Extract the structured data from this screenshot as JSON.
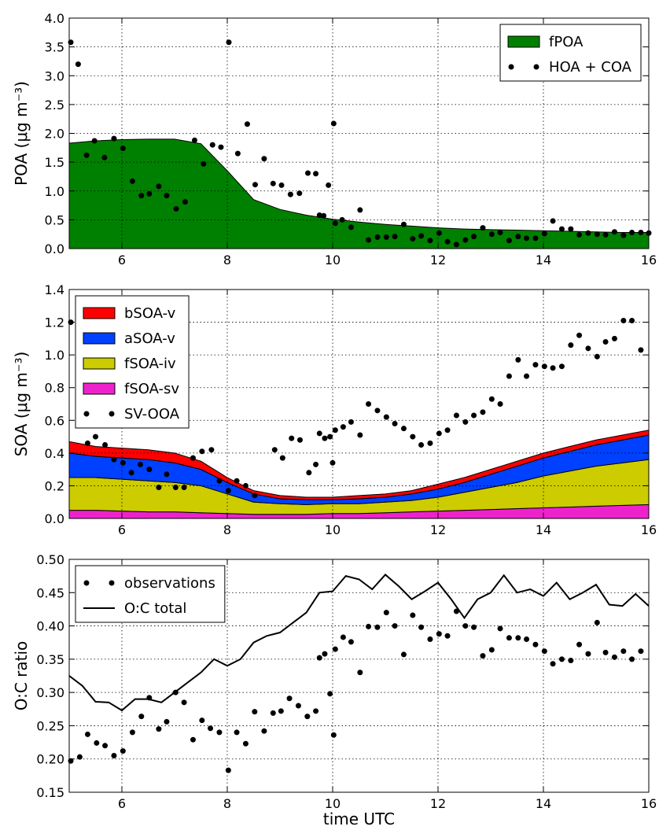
{
  "chart_data": [
    {
      "type": "combo",
      "ylabel": "POA (μg m⁻³)",
      "xlim": [
        5,
        16
      ],
      "ylim": [
        0,
        4
      ],
      "xticks": [
        6,
        8,
        10,
        12,
        14,
        16
      ],
      "yticks": [
        {
          "value": 0,
          "label": "0.0"
        },
        0.5,
        {
          "value": 1,
          "label": "1.0"
        },
        1.5,
        {
          "value": 2,
          "label": "2.0"
        },
        2.5,
        {
          "value": 3,
          "label": "3.0"
        },
        3.5,
        {
          "value": 4,
          "label": "4.0"
        }
      ],
      "grid": true,
      "legend": "upper right",
      "series": [
        {
          "name": "fPOA",
          "type": "area",
          "color": "#008000",
          "x": [
            5,
            5.5,
            6,
            6.5,
            7,
            7.5,
            8,
            8.5,
            9,
            9.5,
            10,
            10.5,
            11,
            11.5,
            12,
            12.5,
            13,
            13.5,
            14,
            14.5,
            15,
            15.5,
            16
          ],
          "values": [
            1.83,
            1.87,
            1.89,
            1.9,
            1.9,
            1.82,
            1.35,
            0.85,
            0.68,
            0.58,
            0.51,
            0.46,
            0.42,
            0.39,
            0.36,
            0.34,
            0.33,
            0.32,
            0.31,
            0.3,
            0.29,
            0.28,
            0.28
          ]
        },
        {
          "name": "HOA + COA",
          "type": "scatter",
          "color": "#000000",
          "x": [
            5.03,
            5.17,
            5.33,
            5.48,
            5.67,
            5.85,
            6.02,
            6.2,
            6.37,
            6.52,
            6.7,
            6.85,
            7.03,
            7.2,
            7.38,
            7.55,
            7.72,
            7.88,
            8.03,
            8.2,
            8.38,
            8.53,
            8.7,
            8.87,
            9.03,
            9.2,
            9.37,
            9.53,
            9.68,
            9.75,
            9.83,
            9.92,
            10.02,
            10.05,
            10.18,
            10.35,
            10.52,
            10.68,
            10.85,
            11.02,
            11.18,
            11.35,
            11.52,
            11.68,
            11.85,
            12.02,
            12.18,
            12.35,
            12.52,
            12.68,
            12.85,
            13.02,
            13.18,
            13.35,
            13.52,
            13.68,
            13.85,
            14.02,
            14.18,
            14.35,
            14.52,
            14.68,
            14.85,
            15.02,
            15.18,
            15.35,
            15.52,
            15.68,
            15.85,
            16.0
          ],
          "values": [
            3.58,
            3.2,
            1.62,
            1.87,
            1.58,
            1.91,
            1.74,
            1.17,
            0.92,
            0.95,
            1.08,
            0.92,
            0.69,
            0.81,
            1.88,
            1.47,
            1.8,
            1.76,
            3.58,
            1.65,
            2.16,
            1.11,
            1.56,
            1.13,
            1.1,
            0.94,
            0.96,
            1.31,
            1.3,
            0.58,
            0.57,
            1.1,
            2.17,
            0.44,
            0.5,
            0.37,
            0.67,
            0.15,
            0.2,
            0.2,
            0.21,
            0.42,
            0.17,
            0.22,
            0.14,
            0.27,
            0.12,
            0.07,
            0.15,
            0.21,
            0.36,
            0.25,
            0.28,
            0.14,
            0.21,
            0.18,
            0.18,
            0.26,
            0.48,
            0.34,
            0.34,
            0.24,
            0.27,
            0.25,
            0.24,
            0.29,
            0.23,
            0.28,
            0.28,
            0.27
          ]
        }
      ]
    },
    {
      "type": "combo",
      "ylabel": "SOA (μg m⁻³)",
      "xlim": [
        5,
        16
      ],
      "ylim": [
        0,
        1.4
      ],
      "xticks": [
        6,
        8,
        10,
        12,
        14,
        16
      ],
      "yticks": [
        {
          "value": 0,
          "label": "0.0"
        },
        0.2,
        0.4,
        0.6,
        0.8,
        {
          "value": 1,
          "label": "1.0"
        },
        1.2,
        1.4
      ],
      "grid": true,
      "legend": "upper left",
      "series": [
        {
          "name": "bSOA-v",
          "type": "stacked_area",
          "color": "#ff0000",
          "x": [
            5,
            5.5,
            6,
            6.5,
            7,
            7.5,
            8,
            8.5,
            9,
            9.5,
            10,
            10.5,
            11,
            11.5,
            12,
            12.5,
            13,
            13.5,
            14,
            14.5,
            15,
            15.5,
            16
          ],
          "values": [
            0.07,
            0.06,
            0.06,
            0.06,
            0.06,
            0.05,
            0.03,
            0.02,
            0.02,
            0.015,
            0.015,
            0.02,
            0.02,
            0.02,
            0.03,
            0.03,
            0.03,
            0.03,
            0.03,
            0.03,
            0.03,
            0.03,
            0.03
          ]
        },
        {
          "name": "aSOA-v",
          "type": "stacked_area",
          "color": "#0040ff",
          "x": [
            5,
            5.5,
            6,
            6.5,
            7,
            7.5,
            8,
            8.5,
            9,
            9.5,
            10,
            10.5,
            11,
            11.5,
            12,
            12.5,
            13,
            13.5,
            14,
            14.5,
            15,
            15.5,
            16
          ],
          "values": [
            0.15,
            0.13,
            0.13,
            0.13,
            0.12,
            0.1,
            0.07,
            0.05,
            0.03,
            0.03,
            0.025,
            0.03,
            0.03,
            0.04,
            0.05,
            0.06,
            0.08,
            0.1,
            0.11,
            0.12,
            0.13,
            0.14,
            0.15
          ]
        },
        {
          "name": "fSOA-iv",
          "type": "stacked_area",
          "color": "#cccc00",
          "x": [
            5,
            5.5,
            6,
            6.5,
            7,
            7.5,
            8,
            8.5,
            9,
            9.5,
            10,
            10.5,
            11,
            11.5,
            12,
            12.5,
            13,
            13.5,
            14,
            14.5,
            15,
            15.5,
            16
          ],
          "values": [
            0.2,
            0.2,
            0.195,
            0.19,
            0.18,
            0.165,
            0.12,
            0.075,
            0.065,
            0.06,
            0.06,
            0.06,
            0.065,
            0.07,
            0.085,
            0.11,
            0.135,
            0.16,
            0.195,
            0.22,
            0.245,
            0.26,
            0.275
          ]
        },
        {
          "name": "fSOA-sv",
          "type": "stacked_area",
          "color": "#ee22cc",
          "x": [
            5,
            5.5,
            6,
            6.5,
            7,
            7.5,
            8,
            8.5,
            9,
            9.5,
            10,
            10.5,
            11,
            11.5,
            12,
            12.5,
            13,
            13.5,
            14,
            14.5,
            15,
            15.5,
            16
          ],
          "values": [
            0.05,
            0.05,
            0.045,
            0.04,
            0.04,
            0.035,
            0.03,
            0.025,
            0.025,
            0.025,
            0.03,
            0.03,
            0.035,
            0.04,
            0.045,
            0.05,
            0.055,
            0.06,
            0.065,
            0.07,
            0.075,
            0.08,
            0.085
          ]
        },
        {
          "name": "SV-OOA",
          "type": "scatter",
          "color": "#000000",
          "x": [
            5.03,
            5.35,
            5.5,
            5.68,
            5.85,
            6.02,
            6.18,
            6.35,
            6.52,
            6.7,
            6.85,
            7.02,
            7.18,
            7.35,
            7.52,
            7.7,
            7.85,
            8.02,
            8.18,
            8.35,
            8.52,
            8.9,
            9.05,
            9.22,
            9.38,
            9.55,
            9.68,
            9.75,
            9.85,
            9.95,
            10.0,
            10.05,
            10.2,
            10.35,
            10.52,
            10.68,
            10.85,
            11.02,
            11.18,
            11.35,
            11.52,
            11.68,
            11.85,
            12.02,
            12.18,
            12.35,
            12.52,
            12.68,
            12.85,
            13.02,
            13.18,
            13.35,
            13.52,
            13.68,
            13.85,
            14.02,
            14.18,
            14.35,
            14.52,
            14.68,
            14.85,
            15.02,
            15.18,
            15.35,
            15.52,
            15.68,
            15.85
          ],
          "values": [
            1.2,
            0.46,
            0.5,
            0.45,
            0.36,
            0.34,
            0.28,
            0.33,
            0.3,
            0.19,
            0.27,
            0.19,
            0.19,
            0.37,
            0.41,
            0.42,
            0.23,
            0.17,
            0.23,
            0.2,
            0.14,
            0.42,
            0.37,
            0.49,
            0.48,
            0.28,
            0.33,
            0.52,
            0.49,
            0.5,
            0.34,
            0.54,
            0.56,
            0.59,
            0.51,
            0.7,
            0.66,
            0.62,
            0.58,
            0.55,
            0.5,
            0.45,
            0.46,
            0.52,
            0.54,
            0.63,
            0.59,
            0.63,
            0.65,
            0.73,
            0.7,
            0.87,
            0.97,
            0.87,
            0.94,
            0.93,
            0.92,
            0.93,
            1.06,
            1.12,
            1.04,
            0.99,
            1.08,
            1.1,
            1.21,
            1.21,
            1.03
          ]
        }
      ]
    },
    {
      "type": "combo",
      "ylabel": "O:C ratio",
      "xlabel": "time UTC",
      "xlim": [
        5,
        16
      ],
      "ylim": [
        0.15,
        0.5
      ],
      "xticks": [
        6,
        8,
        10,
        12,
        14,
        16
      ],
      "yticks": [
        0.15,
        {
          "value": 0.2,
          "label": "0.20"
        },
        0.25,
        {
          "value": 0.3,
          "label": "0.30"
        },
        0.35,
        {
          "value": 0.4,
          "label": "0.40"
        },
        0.45,
        {
          "value": 0.5,
          "label": "0.50"
        }
      ],
      "grid": true,
      "legend": "upper left",
      "series": [
        {
          "name": "observations",
          "type": "scatter",
          "color": "#000000",
          "x": [
            5.03,
            5.2,
            5.35,
            5.52,
            5.68,
            5.85,
            6.02,
            6.2,
            6.37,
            6.52,
            6.7,
            6.85,
            7.02,
            7.18,
            7.35,
            7.52,
            7.68,
            7.85,
            8.02,
            8.18,
            8.35,
            8.52,
            8.7,
            8.87,
            9.02,
            9.18,
            9.35,
            9.52,
            9.68,
            9.75,
            9.85,
            9.95,
            10.02,
            10.05,
            10.2,
            10.35,
            10.52,
            10.68,
            10.85,
            11.02,
            11.18,
            11.35,
            11.52,
            11.68,
            11.85,
            12.02,
            12.18,
            12.35,
            12.52,
            12.68,
            12.85,
            13.02,
            13.18,
            13.35,
            13.52,
            13.68,
            13.85,
            14.02,
            14.18,
            14.35,
            14.52,
            14.68,
            14.85,
            15.02,
            15.18,
            15.35,
            15.52,
            15.68,
            15.85
          ],
          "values": [
            0.197,
            0.203,
            0.237,
            0.224,
            0.22,
            0.205,
            0.212,
            0.24,
            0.264,
            0.292,
            0.245,
            0.256,
            0.3,
            0.285,
            0.229,
            0.258,
            0.246,
            0.24,
            0.183,
            0.24,
            0.223,
            0.271,
            0.242,
            0.269,
            0.272,
            0.291,
            0.28,
            0.264,
            0.272,
            0.352,
            0.358,
            0.298,
            0.236,
            0.365,
            0.383,
            0.376,
            0.33,
            0.399,
            0.398,
            0.42,
            0.4,
            0.357,
            0.416,
            0.398,
            0.38,
            0.388,
            0.385,
            0.422,
            0.4,
            0.398,
            0.355,
            0.364,
            0.396,
            0.382,
            0.382,
            0.38,
            0.372,
            0.362,
            0.343,
            0.35,
            0.348,
            0.372,
            0.358,
            0.405,
            0.36,
            0.353,
            0.362,
            0.35,
            0.362
          ]
        },
        {
          "name": "O:C total",
          "type": "line",
          "color": "#000000",
          "x": [
            5,
            5.25,
            5.5,
            5.75,
            6,
            6.25,
            6.5,
            6.75,
            7,
            7.25,
            7.5,
            7.75,
            8,
            8.25,
            8.5,
            8.75,
            9,
            9.25,
            9.5,
            9.75,
            10,
            10.25,
            10.5,
            10.75,
            11,
            11.25,
            11.5,
            11.75,
            12,
            12.25,
            12.5,
            12.75,
            13,
            13.25,
            13.5,
            13.75,
            14,
            14.25,
            14.5,
            14.75,
            15,
            15.25,
            15.5,
            15.75,
            16
          ],
          "values": [
            0.325,
            0.31,
            0.286,
            0.285,
            0.273,
            0.29,
            0.29,
            0.285,
            0.3,
            0.315,
            0.33,
            0.35,
            0.34,
            0.35,
            0.375,
            0.385,
            0.39,
            0.405,
            0.42,
            0.45,
            0.452,
            0.475,
            0.47,
            0.455,
            0.477,
            0.46,
            0.44,
            0.452,
            0.465,
            0.44,
            0.412,
            0.44,
            0.45,
            0.476,
            0.45,
            0.455,
            0.445,
            0.465,
            0.44,
            0.45,
            0.462,
            0.432,
            0.43,
            0.448,
            0.43
          ]
        }
      ]
    }
  ]
}
